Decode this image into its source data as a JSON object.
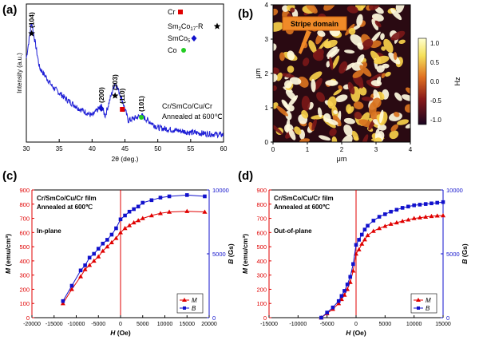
{
  "chart_data": [
    {
      "panel": "(a)",
      "type": "line",
      "xlabel": "2θ (deg.)",
      "ylabel": "Intensity (a.u.)",
      "xlim": [
        30,
        60
      ],
      "xticks": [
        "30",
        "35",
        "40",
        "45",
        "50",
        "55",
        "60"
      ],
      "legend": [
        {
          "label": "Cr",
          "marker": "red-square"
        },
        {
          "label": "Sm2Co17-R",
          "marker": "black-star"
        },
        {
          "label": "SmCo5",
          "marker": "blue-diamond"
        },
        {
          "label": "Co",
          "marker": "green-circle"
        }
      ],
      "peaks": [
        {
          "label": "(104)",
          "x": 30.8,
          "marker": "black-star"
        },
        {
          "label": "(200)",
          "x": 41.4,
          "marker": "blue-diamond"
        },
        {
          "label": "(303)",
          "x": 43.5,
          "marker": "black-star"
        },
        {
          "label": "(110)",
          "x": 44.6,
          "marker": "red-square"
        },
        {
          "label": "(101)",
          "x": 47.5,
          "marker": "green-circle"
        }
      ],
      "annotation": [
        "Cr/SmCo/Cu/Cr",
        "Annealed at 600℃"
      ],
      "series": [
        {
          "color": "#1f1fd6",
          "x": [
            30,
            30.8,
            32,
            34,
            36,
            38,
            40,
            41.4,
            42,
            43.5,
            44.6,
            45.5,
            47.5,
            50,
            55,
            60
          ],
          "y": [
            0.7,
            1.0,
            0.62,
            0.46,
            0.36,
            0.28,
            0.22,
            0.3,
            0.22,
            0.5,
            0.35,
            0.18,
            0.22,
            0.12,
            0.08,
            0.06
          ]
        }
      ]
    },
    {
      "panel": "(b)",
      "type": "heatmap",
      "xlabel": "μm",
      "ylabel": "μm",
      "xlim": [
        0,
        4
      ],
      "ylim": [
        0,
        4
      ],
      "xticks": [
        "0",
        "1",
        "2",
        "3",
        "4"
      ],
      "yticks": [
        "0",
        "1",
        "2",
        "3",
        "4"
      ],
      "colorbar": {
        "label": "Hz",
        "ticks": [
          "1.0",
          "0.5",
          "0.0",
          "-0.5",
          "-1.0"
        ],
        "range": [
          -1.0,
          1.0
        ]
      },
      "callout": "Stripe domain"
    },
    {
      "panel": "(c)",
      "type": "line",
      "xlabel": "H (Oe)",
      "ylabel_left": "M (emu/cm³)",
      "ylabel_right": "B (Gs)",
      "xlim": [
        -20000,
        20000
      ],
      "ylim_left": [
        0,
        900
      ],
      "ylim_right": [
        0,
        10000
      ],
      "xticks": [
        "-20000",
        "-15000",
        "-10000",
        "-5000",
        "0",
        "5000",
        "10000",
        "15000",
        "20000"
      ],
      "yticks_left": [
        "0",
        "100",
        "200",
        "300",
        "400",
        "500",
        "600",
        "700",
        "800",
        "900"
      ],
      "yticks_right": [
        "0",
        "5000",
        "10000"
      ],
      "annotation": [
        "Cr/SmCo/Cu/Cr film",
        "Annealed at 600℃",
        "In-plane"
      ],
      "legend": [
        "M",
        "B"
      ],
      "series": [
        {
          "name": "M",
          "axis": "left",
          "color": "#e00000",
          "x": [
            -13000,
            -11000,
            -9000,
            -8000,
            -7000,
            -6000,
            -5000,
            -4000,
            -3000,
            -2000,
            -1000,
            0,
            1000,
            2000,
            3000,
            4000,
            5000,
            7000,
            9000,
            11000,
            15000,
            19000
          ],
          "y": [
            100,
            200,
            290,
            340,
            370,
            400,
            430,
            470,
            500,
            530,
            560,
            600,
            630,
            650,
            670,
            685,
            700,
            720,
            735,
            745,
            750,
            745
          ]
        },
        {
          "name": "B",
          "axis": "right",
          "color": "#1111cc",
          "x": [
            -13000,
            -11000,
            -9000,
            -8000,
            -7000,
            -6000,
            -5000,
            -4000,
            -3000,
            -2000,
            -1000,
            0,
            1000,
            2000,
            3000,
            4000,
            5000,
            7000,
            9000,
            11000,
            15000,
            19000
          ],
          "y": [
            1300,
            2500,
            3700,
            4100,
            4700,
            5000,
            5400,
            5800,
            6100,
            6500,
            7000,
            7700,
            8000,
            8300,
            8500,
            8700,
            9000,
            9200,
            9400,
            9500,
            9600,
            9500
          ]
        }
      ]
    },
    {
      "panel": "(d)",
      "type": "line",
      "xlabel": "H (Oe)",
      "ylabel_left": "M (emu/cm³)",
      "ylabel_right": "B (Gs)",
      "xlim": [
        -15000,
        15000
      ],
      "ylim_left": [
        0,
        900
      ],
      "ylim_right": [
        0,
        10000
      ],
      "xticks": [
        "-15000",
        "-10000",
        "-5000",
        "0",
        "5000",
        "10000",
        "15000"
      ],
      "yticks_left": [
        "0",
        "100",
        "200",
        "300",
        "400",
        "500",
        "600",
        "700",
        "800",
        "900"
      ],
      "yticks_right": [
        "0",
        "5000",
        "10000"
      ],
      "annotation": [
        "Cr/SmCo/Cu/Cr film",
        "Annealed at 600℃",
        "Out-of-plane"
      ],
      "legend": [
        "M",
        "B"
      ],
      "series": [
        {
          "name": "M",
          "axis": "left",
          "color": "#e00000",
          "x": [
            -6000,
            -5000,
            -4000,
            -3000,
            -2500,
            -2000,
            -1500,
            -1000,
            -500,
            0,
            500,
            1000,
            1500,
            2000,
            3000,
            4000,
            5000,
            6000,
            7000,
            8000,
            9000,
            10000,
            11000,
            12000,
            13000,
            14000,
            15000
          ],
          "y": [
            0,
            30,
            60,
            100,
            130,
            160,
            200,
            250,
            330,
            450,
            480,
            520,
            550,
            580,
            610,
            630,
            645,
            660,
            670,
            680,
            690,
            700,
            705,
            710,
            715,
            718,
            720
          ]
        },
        {
          "name": "B",
          "axis": "right",
          "color": "#1111cc",
          "x": [
            -6000,
            -5000,
            -4000,
            -3000,
            -2500,
            -2000,
            -1500,
            -1000,
            -500,
            0,
            500,
            1000,
            1500,
            2000,
            3000,
            4000,
            5000,
            6000,
            7000,
            8000,
            9000,
            10000,
            11000,
            12000,
            13000,
            14000,
            15000
          ],
          "y": [
            0,
            400,
            800,
            1300,
            1700,
            2100,
            2600,
            3200,
            4200,
            5700,
            6100,
            6500,
            6900,
            7200,
            7600,
            7900,
            8100,
            8300,
            8450,
            8600,
            8700,
            8800,
            8850,
            8900,
            8950,
            9000,
            9050
          ]
        }
      ]
    }
  ]
}
